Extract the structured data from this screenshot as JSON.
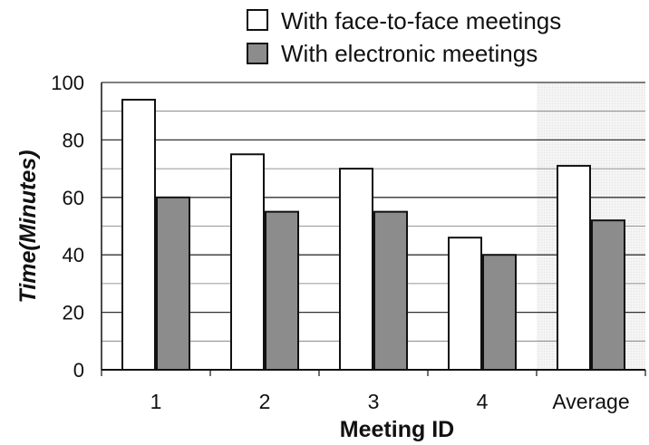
{
  "chart_data": {
    "type": "bar",
    "title": "",
    "xlabel": "Meeting ID",
    "ylabel": "Time(Minutes)",
    "categories": [
      "1",
      "2",
      "3",
      "4",
      "Average"
    ],
    "series": [
      {
        "name": "With face-to-face meetings",
        "values": [
          94,
          75,
          70,
          46,
          71
        ],
        "color": "#ffffff"
      },
      {
        "name": "With electronic meetings",
        "values": [
          60,
          55,
          55,
          40,
          52
        ],
        "color": "#8c8c8c"
      }
    ],
    "ylim": [
      0,
      100
    ],
    "yticks": [
      0,
      20,
      40,
      60,
      80,
      100
    ],
    "grid": true,
    "legend": "top-right"
  }
}
